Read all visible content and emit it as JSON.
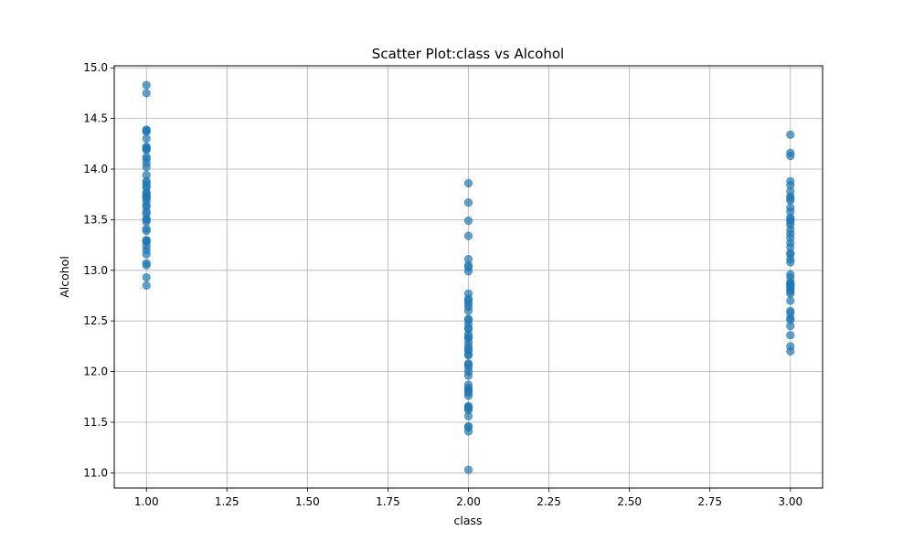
{
  "chart_data": {
    "type": "scatter",
    "title": "Scatter Plot:class vs Alcohol",
    "xlabel": "class",
    "ylabel": "Alcohol",
    "xlim": [
      0.9,
      3.1
    ],
    "ylim": [
      10.85,
      15.02
    ],
    "xticks": [
      1.0,
      1.25,
      1.5,
      1.75,
      2.0,
      2.25,
      2.5,
      2.75,
      3.0
    ],
    "xtick_labels": [
      "1.00",
      "1.25",
      "1.50",
      "1.75",
      "2.00",
      "2.25",
      "2.50",
      "2.75",
      "3.00"
    ],
    "yticks": [
      11.0,
      11.5,
      12.0,
      12.5,
      13.0,
      13.5,
      14.0,
      14.5,
      15.0
    ],
    "ytick_labels": [
      "11.0",
      "11.5",
      "12.0",
      "12.5",
      "13.0",
      "13.5",
      "14.0",
      "14.5",
      "15.0"
    ],
    "grid": true,
    "marker_color": "#1f77b4",
    "points": [
      {
        "x": 1,
        "y": 14.83
      },
      {
        "x": 1,
        "y": 14.75
      },
      {
        "x": 1,
        "y": 14.39
      },
      {
        "x": 1,
        "y": 14.38
      },
      {
        "x": 1,
        "y": 14.37
      },
      {
        "x": 1,
        "y": 14.3
      },
      {
        "x": 1,
        "y": 14.22
      },
      {
        "x": 1,
        "y": 14.21
      },
      {
        "x": 1,
        "y": 14.2
      },
      {
        "x": 1,
        "y": 14.19
      },
      {
        "x": 1,
        "y": 14.12
      },
      {
        "x": 1,
        "y": 14.1
      },
      {
        "x": 1,
        "y": 14.06
      },
      {
        "x": 1,
        "y": 14.02
      },
      {
        "x": 1,
        "y": 13.94
      },
      {
        "x": 1,
        "y": 13.88
      },
      {
        "x": 1,
        "y": 13.86
      },
      {
        "x": 1,
        "y": 13.83
      },
      {
        "x": 1,
        "y": 13.82
      },
      {
        "x": 1,
        "y": 13.77
      },
      {
        "x": 1,
        "y": 13.76
      },
      {
        "x": 1,
        "y": 13.74
      },
      {
        "x": 1,
        "y": 13.73
      },
      {
        "x": 1,
        "y": 13.72
      },
      {
        "x": 1,
        "y": 13.71
      },
      {
        "x": 1,
        "y": 13.68
      },
      {
        "x": 1,
        "y": 13.64
      },
      {
        "x": 1,
        "y": 13.63
      },
      {
        "x": 1,
        "y": 13.58
      },
      {
        "x": 1,
        "y": 13.56
      },
      {
        "x": 1,
        "y": 13.51
      },
      {
        "x": 1,
        "y": 13.5
      },
      {
        "x": 1,
        "y": 13.48
      },
      {
        "x": 1,
        "y": 13.41
      },
      {
        "x": 1,
        "y": 13.39
      },
      {
        "x": 1,
        "y": 13.3
      },
      {
        "x": 1,
        "y": 13.29
      },
      {
        "x": 1,
        "y": 13.28
      },
      {
        "x": 1,
        "y": 13.24
      },
      {
        "x": 1,
        "y": 13.2
      },
      {
        "x": 1,
        "y": 13.16
      },
      {
        "x": 1,
        "y": 13.07
      },
      {
        "x": 1,
        "y": 13.05
      },
      {
        "x": 1,
        "y": 12.93
      },
      {
        "x": 1,
        "y": 12.85
      },
      {
        "x": 2,
        "y": 13.86
      },
      {
        "x": 2,
        "y": 13.67
      },
      {
        "x": 2,
        "y": 13.49
      },
      {
        "x": 2,
        "y": 13.34
      },
      {
        "x": 2,
        "y": 13.11
      },
      {
        "x": 2,
        "y": 13.05
      },
      {
        "x": 2,
        "y": 13.03
      },
      {
        "x": 2,
        "y": 12.99
      },
      {
        "x": 2,
        "y": 12.77
      },
      {
        "x": 2,
        "y": 12.72
      },
      {
        "x": 2,
        "y": 12.7
      },
      {
        "x": 2,
        "y": 12.67
      },
      {
        "x": 2,
        "y": 12.64
      },
      {
        "x": 2,
        "y": 12.6
      },
      {
        "x": 2,
        "y": 12.52
      },
      {
        "x": 2,
        "y": 12.51
      },
      {
        "x": 2,
        "y": 12.47
      },
      {
        "x": 2,
        "y": 12.43
      },
      {
        "x": 2,
        "y": 12.42
      },
      {
        "x": 2,
        "y": 12.37
      },
      {
        "x": 2,
        "y": 12.34
      },
      {
        "x": 2,
        "y": 12.33
      },
      {
        "x": 2,
        "y": 12.29
      },
      {
        "x": 2,
        "y": 12.25
      },
      {
        "x": 2,
        "y": 12.22
      },
      {
        "x": 2,
        "y": 12.21
      },
      {
        "x": 2,
        "y": 12.17
      },
      {
        "x": 2,
        "y": 12.16
      },
      {
        "x": 2,
        "y": 12.08
      },
      {
        "x": 2,
        "y": 12.07
      },
      {
        "x": 2,
        "y": 12.04
      },
      {
        "x": 2,
        "y": 12.0
      },
      {
        "x": 2,
        "y": 11.96
      },
      {
        "x": 2,
        "y": 11.87
      },
      {
        "x": 2,
        "y": 11.84
      },
      {
        "x": 2,
        "y": 11.82
      },
      {
        "x": 2,
        "y": 11.81
      },
      {
        "x": 2,
        "y": 11.79
      },
      {
        "x": 2,
        "y": 11.76
      },
      {
        "x": 2,
        "y": 11.66
      },
      {
        "x": 2,
        "y": 11.65
      },
      {
        "x": 2,
        "y": 11.64
      },
      {
        "x": 2,
        "y": 11.62
      },
      {
        "x": 2,
        "y": 11.56
      },
      {
        "x": 2,
        "y": 11.46
      },
      {
        "x": 2,
        "y": 11.45
      },
      {
        "x": 2,
        "y": 11.41
      },
      {
        "x": 2,
        "y": 11.03
      },
      {
        "x": 3,
        "y": 14.34
      },
      {
        "x": 3,
        "y": 14.16
      },
      {
        "x": 3,
        "y": 14.13
      },
      {
        "x": 3,
        "y": 13.88
      },
      {
        "x": 3,
        "y": 13.84
      },
      {
        "x": 3,
        "y": 13.78
      },
      {
        "x": 3,
        "y": 13.73
      },
      {
        "x": 3,
        "y": 13.71
      },
      {
        "x": 3,
        "y": 13.69
      },
      {
        "x": 3,
        "y": 13.62
      },
      {
        "x": 3,
        "y": 13.58
      },
      {
        "x": 3,
        "y": 13.52
      },
      {
        "x": 3,
        "y": 13.5
      },
      {
        "x": 3,
        "y": 13.48
      },
      {
        "x": 3,
        "y": 13.45
      },
      {
        "x": 3,
        "y": 13.4
      },
      {
        "x": 3,
        "y": 13.36
      },
      {
        "x": 3,
        "y": 13.32
      },
      {
        "x": 3,
        "y": 13.27
      },
      {
        "x": 3,
        "y": 13.23
      },
      {
        "x": 3,
        "y": 13.17
      },
      {
        "x": 3,
        "y": 13.16
      },
      {
        "x": 3,
        "y": 13.11
      },
      {
        "x": 3,
        "y": 13.08
      },
      {
        "x": 3,
        "y": 12.96
      },
      {
        "x": 3,
        "y": 12.93
      },
      {
        "x": 3,
        "y": 12.88
      },
      {
        "x": 3,
        "y": 12.87
      },
      {
        "x": 3,
        "y": 12.86
      },
      {
        "x": 3,
        "y": 12.85
      },
      {
        "x": 3,
        "y": 12.84
      },
      {
        "x": 3,
        "y": 12.82
      },
      {
        "x": 3,
        "y": 12.81
      },
      {
        "x": 3,
        "y": 12.79
      },
      {
        "x": 3,
        "y": 12.77
      },
      {
        "x": 3,
        "y": 12.7
      },
      {
        "x": 3,
        "y": 12.6
      },
      {
        "x": 3,
        "y": 12.58
      },
      {
        "x": 3,
        "y": 12.53
      },
      {
        "x": 3,
        "y": 12.51
      },
      {
        "x": 3,
        "y": 12.45
      },
      {
        "x": 3,
        "y": 12.36
      },
      {
        "x": 3,
        "y": 12.25
      },
      {
        "x": 3,
        "y": 12.2
      }
    ]
  }
}
